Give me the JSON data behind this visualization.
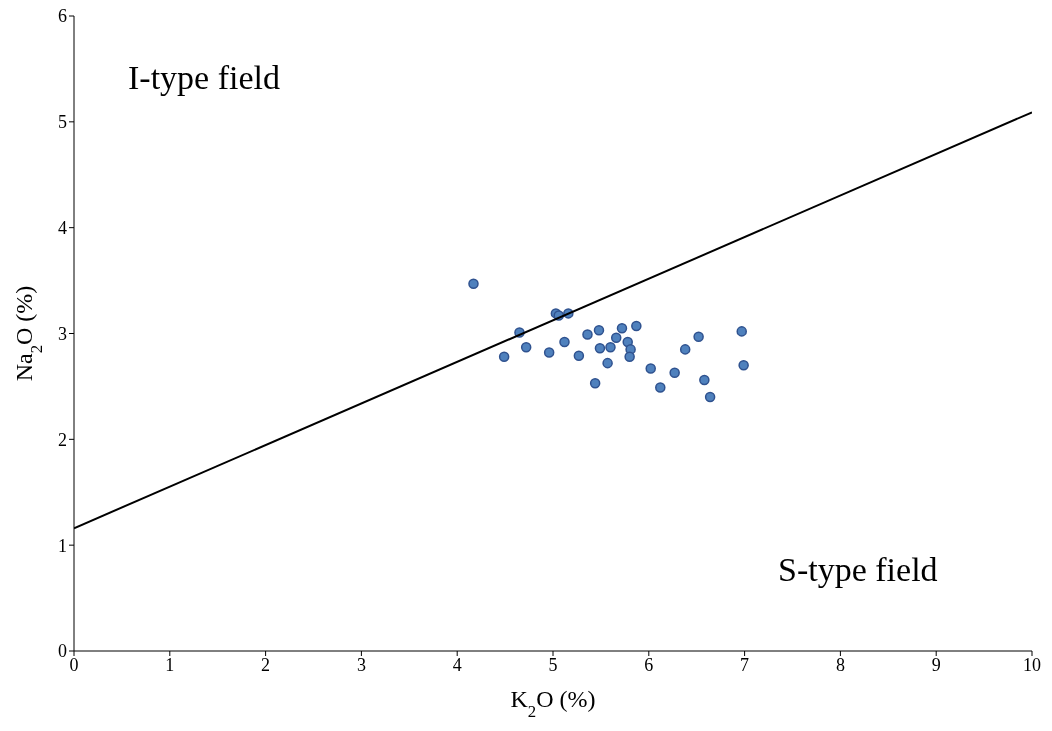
{
  "chart_data": {
    "type": "scatter",
    "xlabel": "K$_{2}$O (%)",
    "ylabel": "Na$_{2}$O (%)",
    "xlim": [
      0,
      10
    ],
    "xticks": [
      0,
      1,
      2,
      3,
      4,
      5,
      6,
      7,
      8,
      9,
      10
    ],
    "ylim": [
      0,
      6
    ],
    "yticks": [
      0,
      1,
      2,
      3,
      4,
      5,
      6
    ],
    "grid": false,
    "legend": false,
    "series": [
      {
        "marker": "circle",
        "color": "#4f81bd",
        "x": [
          4.17,
          5.03,
          5.06,
          5.16,
          4.65,
          4.49,
          4.72,
          4.96,
          5.12,
          5.27,
          5.36,
          5.48,
          5.49,
          5.6,
          5.57,
          5.44,
          5.66,
          5.72,
          5.87,
          5.78,
          5.81,
          5.8,
          6.02,
          6.12,
          6.27,
          6.38,
          6.52,
          6.58,
          6.64,
          6.97,
          6.99
        ],
        "values": [
          3.47,
          3.19,
          3.17,
          3.19,
          3.01,
          2.78,
          2.87,
          2.82,
          2.92,
          2.79,
          2.99,
          3.03,
          2.86,
          2.87,
          2.72,
          2.53,
          2.96,
          3.05,
          3.07,
          2.92,
          2.85,
          2.78,
          2.67,
          2.49,
          2.63,
          2.85,
          2.97,
          2.56,
          2.4,
          3.02,
          2.7
        ]
      },
      {
        "type": "line",
        "marker": "none",
        "color": "#000000",
        "x": [
          0,
          10
        ],
        "values": [
          1.16,
          5.09
        ],
        "line_style": "solid"
      }
    ],
    "annotations": [
      "I-type field",
      "S-type field"
    ]
  }
}
